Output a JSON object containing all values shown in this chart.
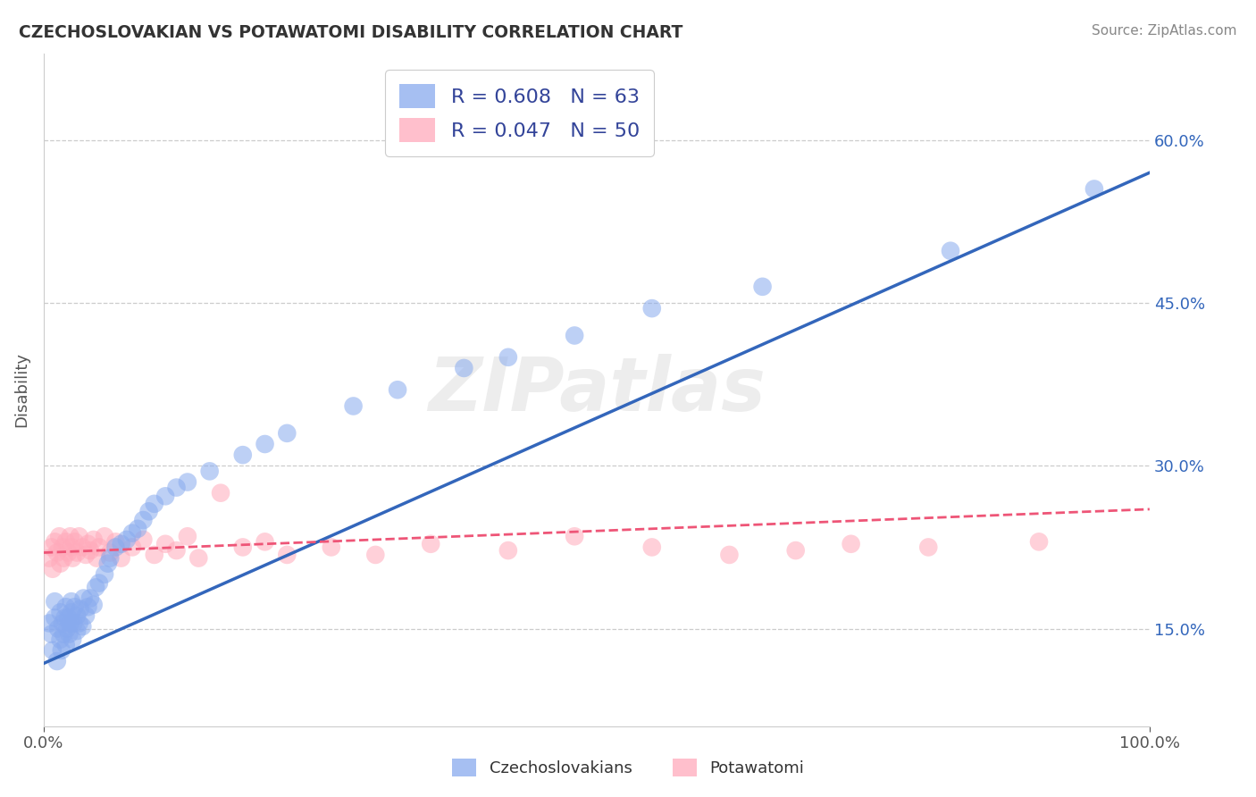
{
  "title": "CZECHOSLOVAKIAN VS POTAWATOMI DISABILITY CORRELATION CHART",
  "source": "Source: ZipAtlas.com",
  "ylabel": "Disability",
  "ylabel_ticks": [
    "15.0%",
    "30.0%",
    "45.0%",
    "60.0%"
  ],
  "xlim": [
    0.0,
    1.0
  ],
  "ylim": [
    0.06,
    0.68
  ],
  "ytick_positions": [
    0.15,
    0.3,
    0.45,
    0.6
  ],
  "xtick_positions": [
    0.0,
    1.0
  ],
  "xtick_labels": [
    "0.0%",
    "100.0%"
  ],
  "grid_color": "#cccccc",
  "background_color": "#ffffff",
  "blue_color": "#88aaee",
  "pink_color": "#ffaabb",
  "blue_line_color": "#3366bb",
  "pink_line_color": "#ee5577",
  "R_blue": 0.608,
  "N_blue": 63,
  "R_pink": 0.047,
  "N_pink": 50,
  "legend_blue_label": "R = 0.608   N = 63",
  "legend_pink_label": "R = 0.047   N = 50",
  "watermark": "ZIPatlas",
  "blue_scatter_x": [
    0.005,
    0.007,
    0.008,
    0.01,
    0.01,
    0.012,
    0.013,
    0.015,
    0.015,
    0.016,
    0.017,
    0.018,
    0.019,
    0.02,
    0.02,
    0.021,
    0.022,
    0.023,
    0.024,
    0.025,
    0.025,
    0.026,
    0.027,
    0.028,
    0.03,
    0.03,
    0.032,
    0.033,
    0.035,
    0.036,
    0.038,
    0.04,
    0.042,
    0.045,
    0.047,
    0.05,
    0.055,
    0.058,
    0.06,
    0.065,
    0.07,
    0.075,
    0.08,
    0.085,
    0.09,
    0.095,
    0.1,
    0.11,
    0.12,
    0.13,
    0.15,
    0.18,
    0.2,
    0.22,
    0.28,
    0.32,
    0.38,
    0.42,
    0.48,
    0.55,
    0.65,
    0.82,
    0.95
  ],
  "blue_scatter_y": [
    0.155,
    0.145,
    0.13,
    0.16,
    0.175,
    0.12,
    0.15,
    0.14,
    0.165,
    0.13,
    0.155,
    0.145,
    0.16,
    0.135,
    0.17,
    0.15,
    0.16,
    0.145,
    0.155,
    0.165,
    0.175,
    0.14,
    0.155,
    0.17,
    0.148,
    0.162,
    0.155,
    0.168,
    0.152,
    0.178,
    0.162,
    0.17,
    0.178,
    0.172,
    0.188,
    0.192,
    0.2,
    0.21,
    0.215,
    0.225,
    0.228,
    0.232,
    0.238,
    0.242,
    0.25,
    0.258,
    0.265,
    0.272,
    0.28,
    0.285,
    0.295,
    0.31,
    0.32,
    0.33,
    0.355,
    0.37,
    0.39,
    0.4,
    0.42,
    0.445,
    0.465,
    0.498,
    0.555
  ],
  "pink_scatter_x": [
    0.005,
    0.007,
    0.008,
    0.01,
    0.012,
    0.014,
    0.015,
    0.017,
    0.018,
    0.02,
    0.022,
    0.024,
    0.025,
    0.026,
    0.028,
    0.03,
    0.032,
    0.035,
    0.038,
    0.04,
    0.042,
    0.045,
    0.048,
    0.05,
    0.055,
    0.06,
    0.065,
    0.07,
    0.08,
    0.09,
    0.1,
    0.11,
    0.12,
    0.13,
    0.14,
    0.16,
    0.18,
    0.2,
    0.22,
    0.26,
    0.3,
    0.35,
    0.42,
    0.48,
    0.55,
    0.62,
    0.68,
    0.73,
    0.8,
    0.9
  ],
  "pink_scatter_y": [
    0.215,
    0.225,
    0.205,
    0.23,
    0.22,
    0.235,
    0.21,
    0.225,
    0.215,
    0.23,
    0.22,
    0.235,
    0.225,
    0.215,
    0.23,
    0.22,
    0.235,
    0.225,
    0.218,
    0.228,
    0.222,
    0.232,
    0.215,
    0.225,
    0.235,
    0.22,
    0.23,
    0.215,
    0.225,
    0.232,
    0.218,
    0.228,
    0.222,
    0.235,
    0.215,
    0.275,
    0.225,
    0.23,
    0.218,
    0.225,
    0.218,
    0.228,
    0.222,
    0.235,
    0.225,
    0.218,
    0.222,
    0.228,
    0.225,
    0.23
  ],
  "blue_line_x0": 0.0,
  "blue_line_y0": 0.118,
  "blue_line_x1": 1.0,
  "blue_line_y1": 0.57,
  "pink_line_x0": 0.0,
  "pink_line_y0": 0.22,
  "pink_line_x1": 1.0,
  "pink_line_y1": 0.26
}
